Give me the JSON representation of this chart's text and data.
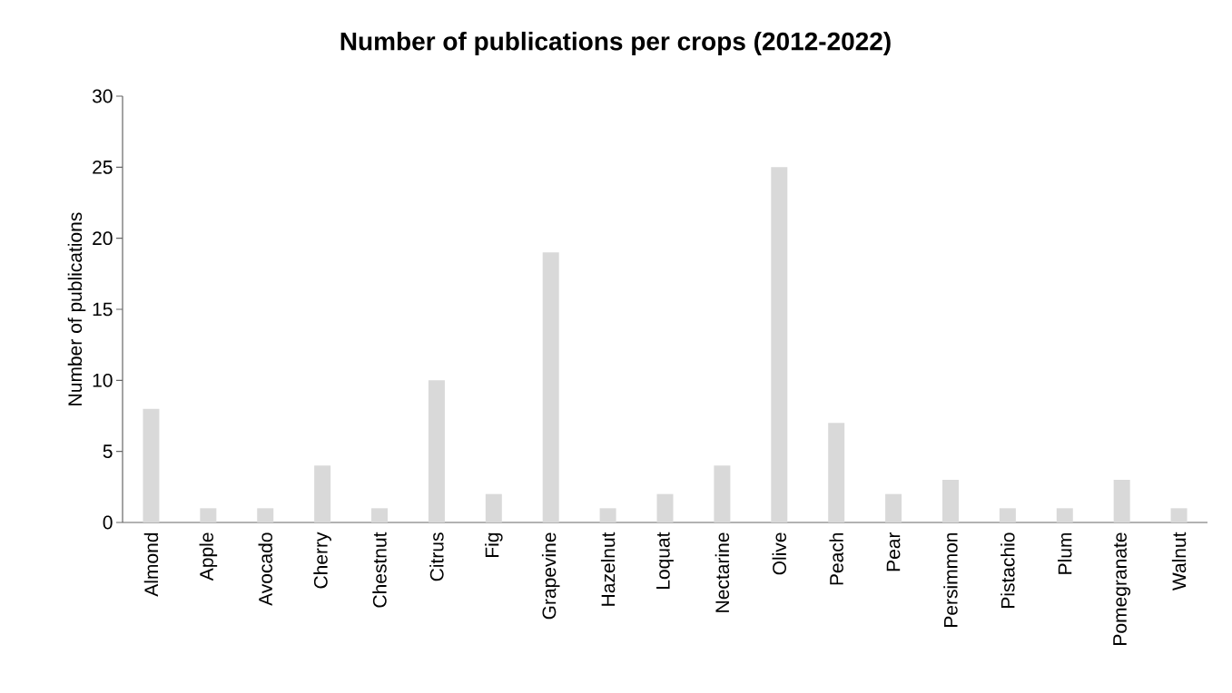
{
  "chart_data": {
    "type": "bar",
    "title": "Number of publications per crops (2012-2022)",
    "ylabel": "Number of publications",
    "categories": [
      "Almond",
      "Apple",
      "Avocado",
      "Cherry",
      "Chestnut",
      "Citrus",
      "Fig",
      "Grapevine",
      "Hazelnut",
      "Loquat",
      "Nectarine",
      "Olive",
      "Peach",
      "Pear",
      "Persimmon",
      "Pistachio",
      "Plum",
      "Pomegranate",
      "Walnut"
    ],
    "values": [
      8,
      1,
      1,
      4,
      1,
      10,
      2,
      19,
      1,
      2,
      4,
      25,
      7,
      2,
      3,
      1,
      1,
      3,
      1
    ],
    "color": "#d9d9d9",
    "ylim": [
      0,
      30
    ],
    "yticks": [
      0,
      5,
      10,
      15,
      20,
      25,
      30
    ],
    "grid": false
  }
}
